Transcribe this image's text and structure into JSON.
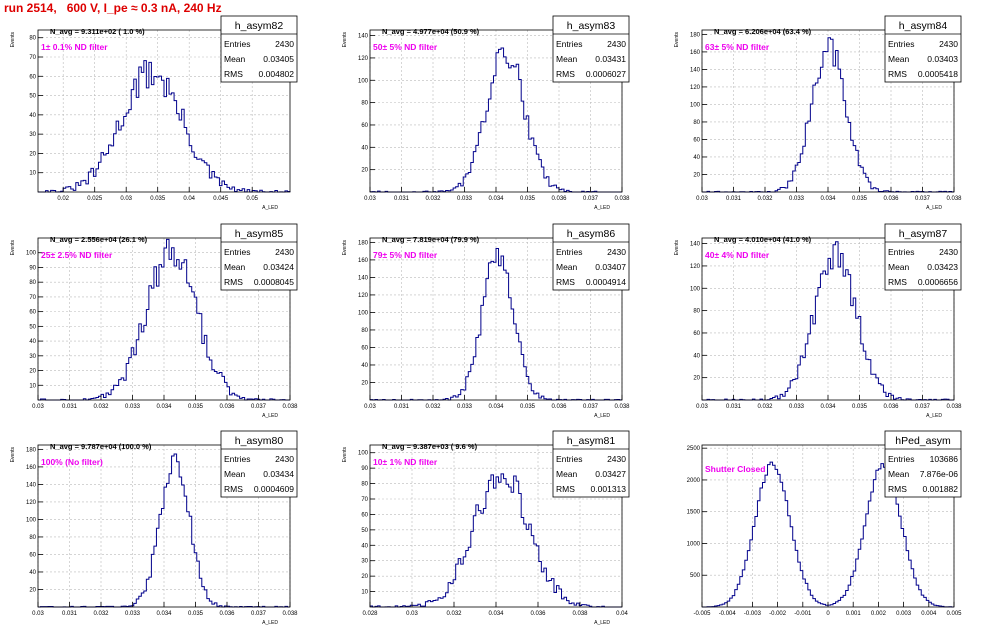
{
  "canvas_title": "run 2514,   600 V, I_pe ≈ 0.3 nA, 240 Hz",
  "colors": {
    "histogram": "#00008b",
    "annotation": "#ee00ee",
    "title": "#dd0000",
    "grid": "#bbbbbb"
  },
  "chart_data": [
    {
      "type": "histogram",
      "name": "h_asym82",
      "title": "N_avg = 9.311e+02 ( 1.0 %)",
      "annotation": "1± 0.1% ND filter",
      "stats": [
        {
          "label": "Entries",
          "value": "2430"
        },
        {
          "label": "Mean",
          "value": "0.03405"
        },
        {
          "label": "RMS",
          "value": "0.004802"
        }
      ],
      "xlabel": "A_LED",
      "ylabel": "Events",
      "xlim": [
        0.016,
        0.056
      ],
      "ylim": [
        0,
        84
      ],
      "x_ticks": [
        "0.02",
        "0.025",
        "0.03",
        "0.035",
        "0.04",
        "0.045",
        "0.05"
      ],
      "y_ticks": [
        "10",
        "20",
        "30",
        "40",
        "50",
        "60",
        "70",
        "80"
      ],
      "grid": true,
      "peaks": [
        {
          "center": 0.03405,
          "sigma": 0.0048,
          "height": 62
        }
      ]
    },
    {
      "type": "histogram",
      "name": "h_asym83",
      "title": "N_avg = 4.977e+04 (50.9 %)",
      "annotation": "50± 5% ND filter",
      "stats": [
        {
          "label": "Entries",
          "value": "2430"
        },
        {
          "label": "Mean",
          "value": "0.03431"
        },
        {
          "label": "RMS",
          "value": "0.0006027"
        }
      ],
      "xlabel": "A_LED",
      "ylabel": "Events",
      "xlim": [
        0.03,
        0.038
      ],
      "ylim": [
        0,
        145
      ],
      "x_ticks": [
        "0.03",
        "0.031",
        "0.032",
        "0.033",
        "0.034",
        "0.035",
        "0.036",
        "0.037",
        "0.038"
      ],
      "y_ticks": [
        "20",
        "40",
        "60",
        "80",
        "100",
        "120",
        "140"
      ],
      "grid": true,
      "peaks": [
        {
          "center": 0.03431,
          "sigma": 0.0006,
          "height": 125
        }
      ]
    },
    {
      "type": "histogram",
      "name": "h_asym84",
      "title": "N_avg = 6.206e+04 (63.4 %)",
      "annotation": "63± 5% ND filter",
      "stats": [
        {
          "label": "Entries",
          "value": "2430"
        },
        {
          "label": "Mean",
          "value": "0.03403"
        },
        {
          "label": "RMS",
          "value": "0.0005418"
        }
      ],
      "xlabel": "A_LED",
      "ylabel": "Events",
      "xlim": [
        0.03,
        0.038
      ],
      "ylim": [
        0,
        185
      ],
      "x_ticks": [
        "0.03",
        "0.031",
        "0.032",
        "0.033",
        "0.034",
        "0.035",
        "0.036",
        "0.037",
        "0.038"
      ],
      "y_ticks": [
        "20",
        "40",
        "60",
        "80",
        "100",
        "120",
        "140",
        "160",
        "180"
      ],
      "grid": true,
      "peaks": [
        {
          "center": 0.03403,
          "sigma": 0.00054,
          "height": 165
        }
      ]
    },
    {
      "type": "histogram",
      "name": "h_asym85",
      "title": "N_avg = 2.556e+04 (26.1 %)",
      "annotation": "25± 2.5% ND filter",
      "stats": [
        {
          "label": "Entries",
          "value": "2430"
        },
        {
          "label": "Mean",
          "value": "0.03424"
        },
        {
          "label": "RMS",
          "value": "0.0008045"
        }
      ],
      "xlabel": "A_LED",
      "ylabel": "Events",
      "xlim": [
        0.03,
        0.038
      ],
      "ylim": [
        0,
        110
      ],
      "x_ticks": [
        "0.03",
        "0.031",
        "0.032",
        "0.033",
        "0.034",
        "0.035",
        "0.036",
        "0.037",
        "0.038"
      ],
      "y_ticks": [
        "10",
        "20",
        "30",
        "40",
        "50",
        "60",
        "70",
        "80",
        "90",
        "100"
      ],
      "grid": true,
      "peaks": [
        {
          "center": 0.03424,
          "sigma": 0.0008,
          "height": 100
        }
      ]
    },
    {
      "type": "histogram",
      "name": "h_asym86",
      "title": "N_avg = 7.819e+04 (79.9 %)",
      "annotation": "79± 5% ND filter",
      "stats": [
        {
          "label": "Entries",
          "value": "2430"
        },
        {
          "label": "Mean",
          "value": "0.03407"
        },
        {
          "label": "RMS",
          "value": "0.0004914"
        }
      ],
      "xlabel": "A_LED",
      "ylabel": "Events",
      "xlim": [
        0.03,
        0.038
      ],
      "ylim": [
        0,
        185
      ],
      "x_ticks": [
        "0.03",
        "0.031",
        "0.032",
        "0.033",
        "0.034",
        "0.035",
        "0.036",
        "0.037",
        "0.038"
      ],
      "y_ticks": [
        "20",
        "40",
        "60",
        "80",
        "100",
        "120",
        "140",
        "160",
        "180"
      ],
      "grid": true,
      "peaks": [
        {
          "center": 0.03407,
          "sigma": 0.00049,
          "height": 168
        }
      ]
    },
    {
      "type": "histogram",
      "name": "h_asym87",
      "title": "N_avg = 4.010e+04 (41.0 %)",
      "annotation": "40± 4% ND filter",
      "stats": [
        {
          "label": "Entries",
          "value": "2430"
        },
        {
          "label": "Mean",
          "value": "0.03423"
        },
        {
          "label": "RMS",
          "value": "0.0006656"
        }
      ],
      "xlabel": "A_LED",
      "ylabel": "Events",
      "xlim": [
        0.03,
        0.038
      ],
      "ylim": [
        0,
        145
      ],
      "x_ticks": [
        "0.03",
        "0.031",
        "0.032",
        "0.033",
        "0.034",
        "0.035",
        "0.036",
        "0.037",
        "0.038"
      ],
      "y_ticks": [
        "20",
        "40",
        "60",
        "80",
        "100",
        "120",
        "140"
      ],
      "grid": true,
      "peaks": [
        {
          "center": 0.03423,
          "sigma": 0.00066,
          "height": 130
        }
      ]
    },
    {
      "type": "histogram",
      "name": "h_asym80",
      "title": "N_avg = 9.787e+04 (100.0 %)",
      "annotation": "100% (No filter)",
      "stats": [
        {
          "label": "Entries",
          "value": "2430"
        },
        {
          "label": "Mean",
          "value": "0.03434"
        },
        {
          "label": "RMS",
          "value": "0.0004609"
        }
      ],
      "xlabel": "A_LED",
      "ylabel": "Events",
      "xlim": [
        0.03,
        0.038
      ],
      "ylim": [
        0,
        185
      ],
      "x_ticks": [
        "0.03",
        "0.031",
        "0.032",
        "0.033",
        "0.034",
        "0.035",
        "0.036",
        "0.037",
        "0.038"
      ],
      "y_ticks": [
        "20",
        "40",
        "60",
        "80",
        "100",
        "120",
        "140",
        "160",
        "180"
      ],
      "grid": true,
      "peaks": [
        {
          "center": 0.03434,
          "sigma": 0.00046,
          "height": 170
        }
      ]
    },
    {
      "type": "histogram",
      "name": "h_asym81",
      "title": "N_avg = 9.387e+03 ( 9.6 %)",
      "annotation": "10± 1% ND filter",
      "stats": [
        {
          "label": "Entries",
          "value": "2430"
        },
        {
          "label": "Mean",
          "value": "0.03427"
        },
        {
          "label": "RMS",
          "value": "0.001313"
        }
      ],
      "xlabel": "A_LED",
      "ylabel": "Events",
      "xlim": [
        0.028,
        0.04
      ],
      "ylim": [
        0,
        105
      ],
      "x_ticks": [
        "0.028",
        "0.03",
        "0.032",
        "0.034",
        "0.036",
        "0.038",
        "0.04"
      ],
      "y_ticks": [
        "10",
        "20",
        "30",
        "40",
        "50",
        "60",
        "70",
        "80",
        "90",
        "100"
      ],
      "grid": true,
      "peaks": [
        {
          "center": 0.03427,
          "sigma": 0.0013,
          "height": 88
        }
      ]
    },
    {
      "type": "histogram",
      "name": "hPed_asym",
      "title": "",
      "annotation": "Shutter Closed",
      "stats": [
        {
          "label": "Entries",
          "value": "103686"
        },
        {
          "label": "Mean",
          "value": "7.876e-06"
        },
        {
          "label": "RMS",
          "value": "0.001882"
        }
      ],
      "xlabel": "",
      "ylabel": "",
      "xlim": [
        -0.005,
        0.005
      ],
      "ylim": [
        0,
        2550
      ],
      "x_ticks": [
        "-0.005",
        "-0.004",
        "-0.003",
        "-0.002",
        "-0.001",
        "0",
        "0.001",
        "0.002",
        "0.003",
        "0.004",
        "0.005"
      ],
      "y_ticks": [
        "500",
        "1000",
        "1500",
        "2000",
        "2500"
      ],
      "grid": true,
      "peaks": [
        {
          "center": -0.0022,
          "sigma": 0.0007,
          "height": 2250
        },
        {
          "center": 0.0022,
          "sigma": 0.0007,
          "height": 2250
        }
      ]
    }
  ]
}
